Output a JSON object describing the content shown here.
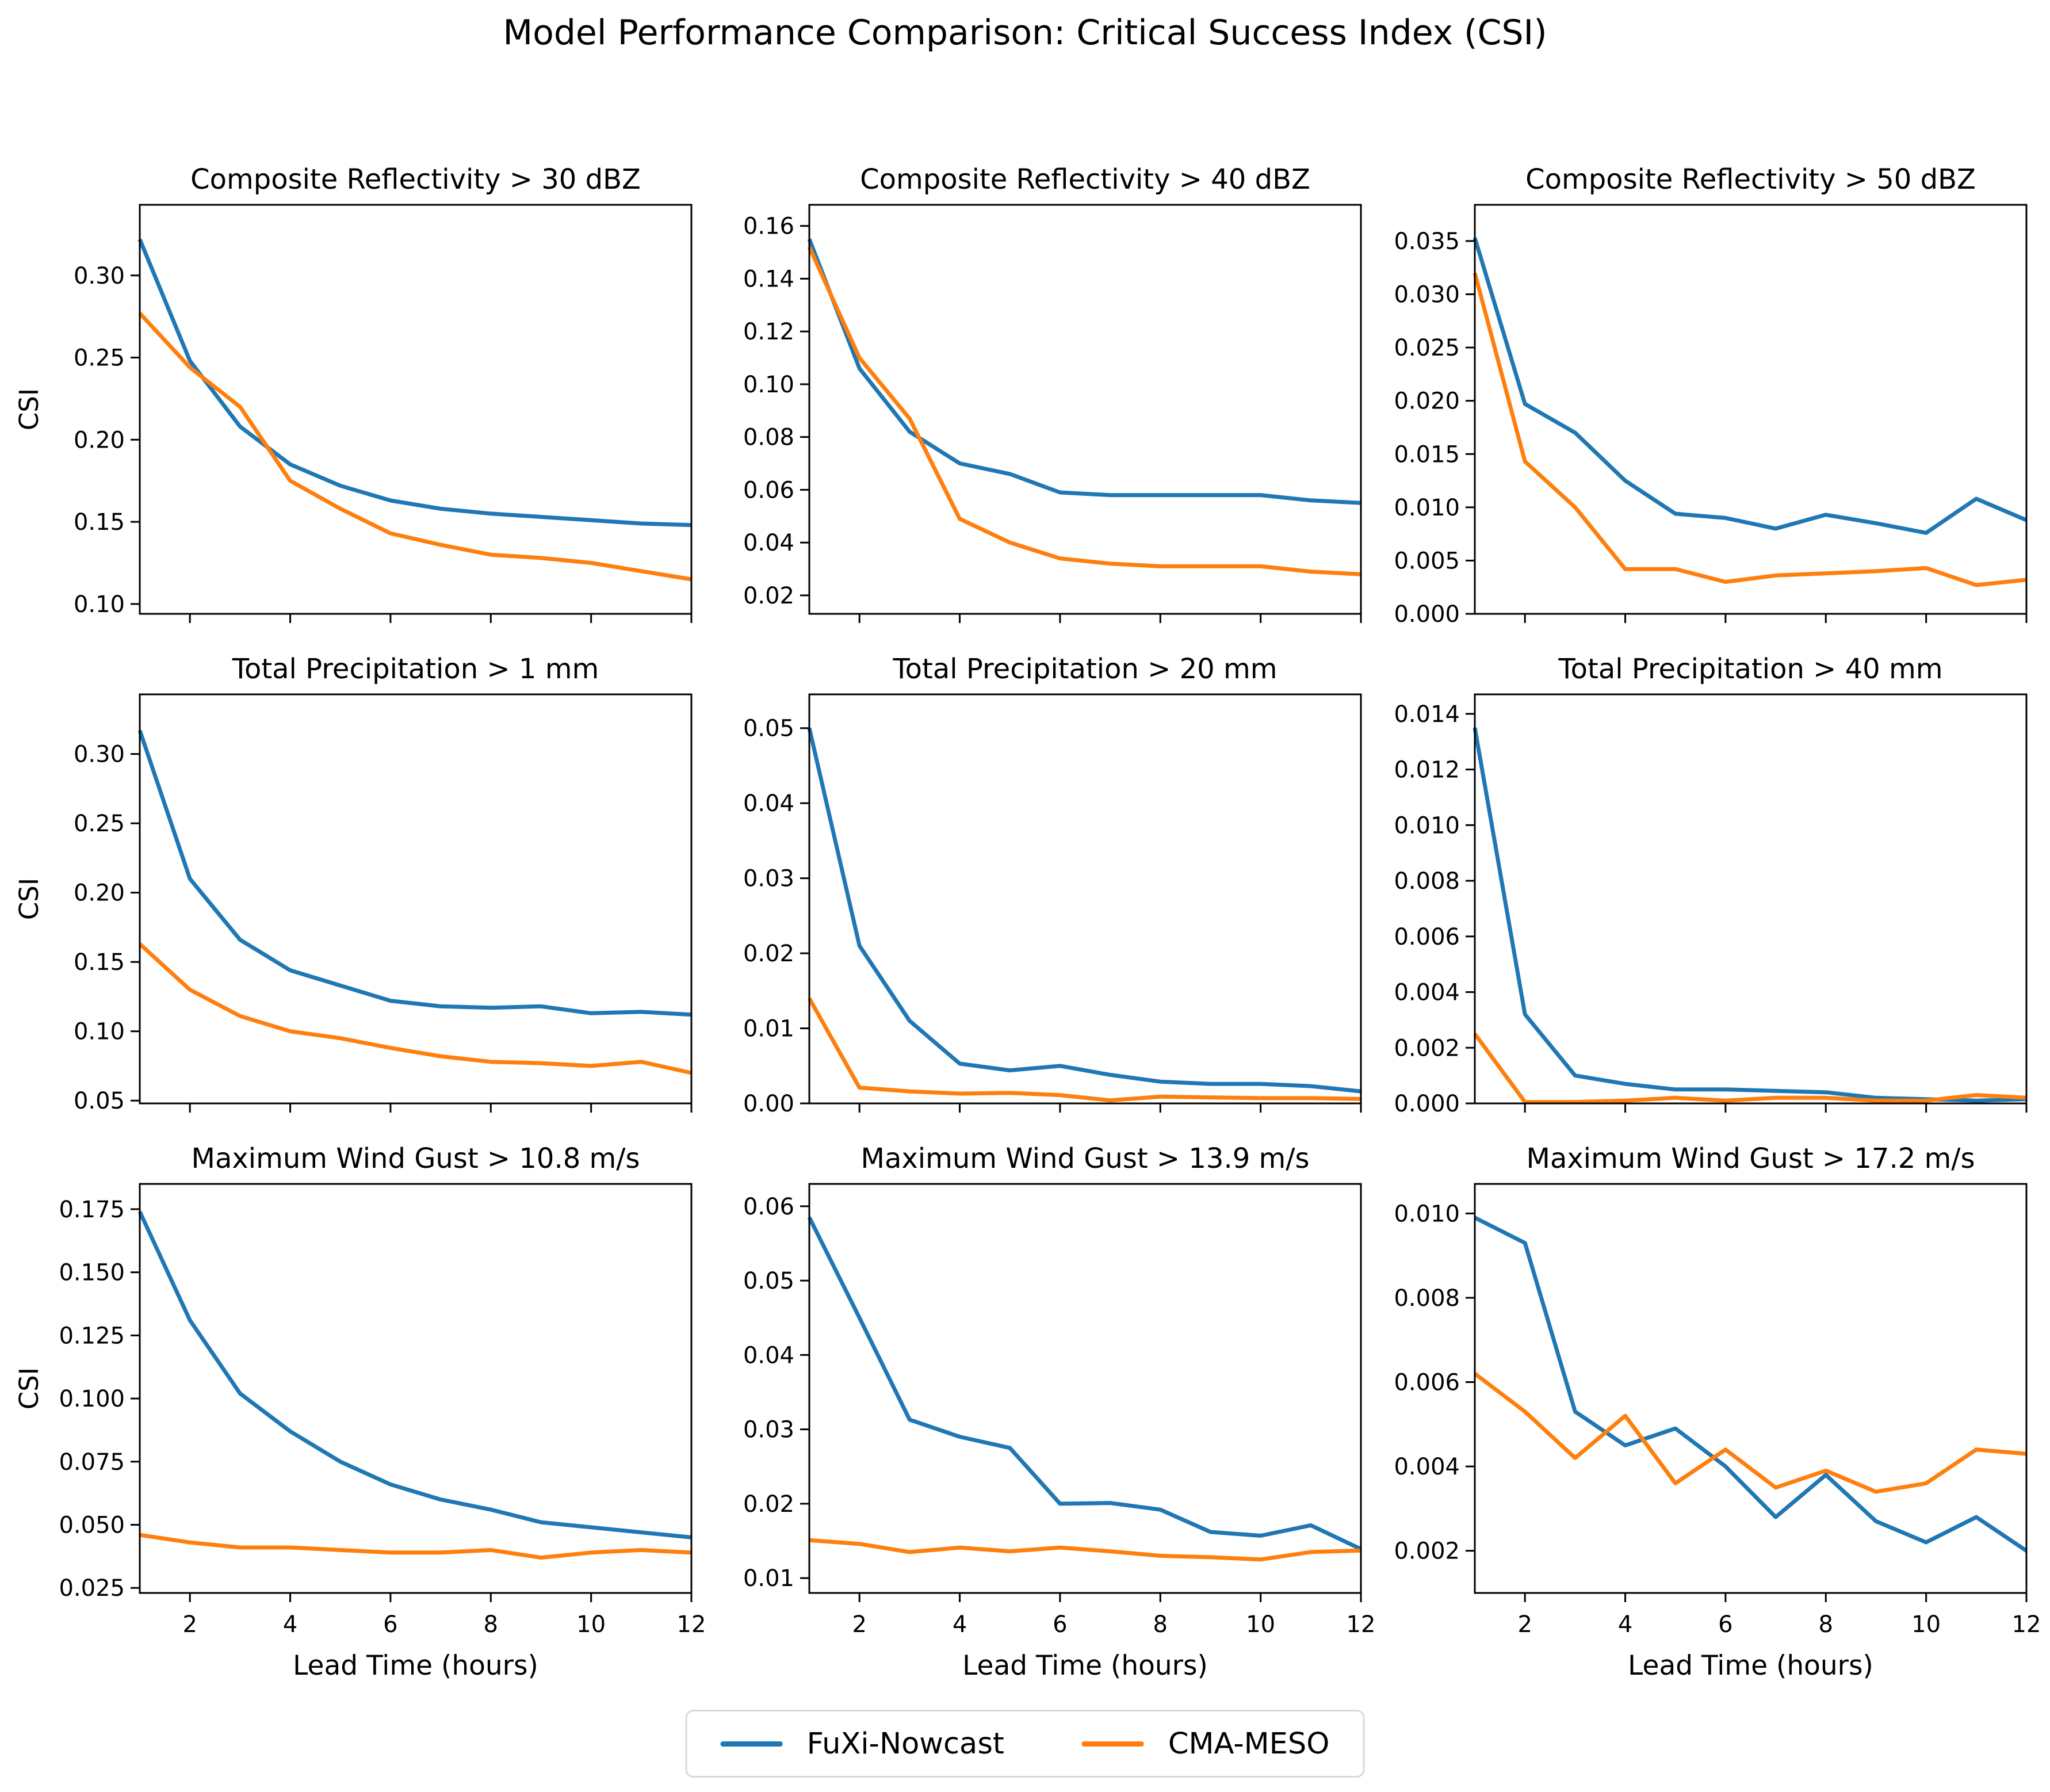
{
  "figure": {
    "title": "Model Performance Comparison: Critical Success Index (CSI)",
    "background": "#ffffff"
  },
  "colors": {
    "fuxi": "#1f77b4",
    "cma": "#ff7f0e",
    "axis": "#000000",
    "legend_border": "#d9d9d9"
  },
  "legend": {
    "items": [
      {
        "label": "FuXi-Nowcast",
        "color": "#1f77b4"
      },
      {
        "label": "CMA-MESO",
        "color": "#ff7f0e"
      }
    ]
  },
  "shared_axes": {
    "xlabel": "Lead Time (hours)",
    "ylabel": "CSI",
    "x": [
      1,
      2,
      3,
      4,
      5,
      6,
      7,
      8,
      9,
      10,
      11,
      12
    ],
    "xticks": [
      2,
      4,
      6,
      8,
      10,
      12
    ],
    "xtick_labels": [
      "2",
      "4",
      "6",
      "8",
      "10",
      "12"
    ],
    "xlim": [
      1,
      12
    ],
    "grid": false,
    "legend_position": "bottom-center"
  },
  "chart_data": [
    {
      "type": "line",
      "title": "Composite Reflectivity > 30 dBZ",
      "row": 0,
      "col": 0,
      "ylim": [
        0.094,
        0.343
      ],
      "yticks": [
        0.1,
        0.15,
        0.2,
        0.25,
        0.3
      ],
      "ytick_labels": [
        "0.10",
        "0.15",
        "0.20",
        "0.25",
        "0.30"
      ],
      "series": [
        {
          "name": "FuXi-Nowcast",
          "color": "#1f77b4",
          "values": [
            0.322,
            0.248,
            0.208,
            0.185,
            0.172,
            0.163,
            0.158,
            0.155,
            0.153,
            0.151,
            0.149,
            0.148
          ]
        },
        {
          "name": "CMA-MESO",
          "color": "#ff7f0e",
          "values": [
            0.277,
            0.244,
            0.22,
            0.175,
            0.158,
            0.143,
            0.136,
            0.13,
            0.128,
            0.125,
            0.12,
            0.115
          ]
        }
      ]
    },
    {
      "type": "line",
      "title": "Composite Reflectivity > 40 dBZ",
      "row": 0,
      "col": 1,
      "ylim": [
        0.013,
        0.168
      ],
      "yticks": [
        0.02,
        0.04,
        0.06,
        0.08,
        0.1,
        0.12,
        0.14,
        0.16
      ],
      "ytick_labels": [
        "0.02",
        "0.04",
        "0.06",
        "0.08",
        "0.10",
        "0.12",
        "0.14",
        "0.16"
      ],
      "series": [
        {
          "name": "FuXi-Nowcast",
          "color": "#1f77b4",
          "values": [
            0.155,
            0.106,
            0.082,
            0.07,
            0.066,
            0.059,
            0.058,
            0.058,
            0.058,
            0.058,
            0.056,
            0.055
          ]
        },
        {
          "name": "CMA-MESO",
          "color": "#ff7f0e",
          "values": [
            0.152,
            0.11,
            0.087,
            0.049,
            0.04,
            0.034,
            0.032,
            0.031,
            0.031,
            0.031,
            0.029,
            0.028
          ]
        }
      ]
    },
    {
      "type": "line",
      "title": "Composite Reflectivity > 50 dBZ",
      "row": 0,
      "col": 2,
      "ylim": [
        0.0,
        0.0384
      ],
      "yticks": [
        0.0,
        0.005,
        0.01,
        0.015,
        0.02,
        0.025,
        0.03,
        0.035
      ],
      "ytick_labels": [
        "0.000",
        "0.005",
        "0.010",
        "0.015",
        "0.020",
        "0.025",
        "0.030",
        "0.035"
      ],
      "series": [
        {
          "name": "FuXi-Nowcast",
          "color": "#1f77b4",
          "values": [
            0.0353,
            0.0197,
            0.017,
            0.0125,
            0.0094,
            0.009,
            0.008,
            0.0093,
            0.0085,
            0.0076,
            0.0108,
            0.0088
          ]
        },
        {
          "name": "CMA-MESO",
          "color": "#ff7f0e",
          "values": [
            0.032,
            0.0143,
            0.01,
            0.0042,
            0.0042,
            0.003,
            0.0036,
            0.0038,
            0.004,
            0.0043,
            0.0027,
            0.0032
          ]
        }
      ]
    },
    {
      "type": "line",
      "title": "Total Precipitation > 1 mm",
      "row": 1,
      "col": 0,
      "ylim": [
        0.048,
        0.343
      ],
      "yticks": [
        0.05,
        0.1,
        0.15,
        0.2,
        0.25,
        0.3
      ],
      "ytick_labels": [
        "0.05",
        "0.10",
        "0.15",
        "0.20",
        "0.25",
        "0.30"
      ],
      "series": [
        {
          "name": "FuXi-Nowcast",
          "color": "#1f77b4",
          "values": [
            0.317,
            0.21,
            0.166,
            0.144,
            0.133,
            0.122,
            0.118,
            0.117,
            0.118,
            0.113,
            0.114,
            0.112
          ]
        },
        {
          "name": "CMA-MESO",
          "color": "#ff7f0e",
          "values": [
            0.163,
            0.13,
            0.111,
            0.1,
            0.095,
            0.088,
            0.082,
            0.078,
            0.077,
            0.075,
            0.078,
            0.07
          ]
        }
      ]
    },
    {
      "type": "line",
      "title": "Total Precipitation > 20 mm",
      "row": 1,
      "col": 1,
      "ylim": [
        0.0,
        0.0545
      ],
      "yticks": [
        0.0,
        0.01,
        0.02,
        0.03,
        0.04,
        0.05
      ],
      "ytick_labels": [
        "0.00",
        "0.01",
        "0.02",
        "0.03",
        "0.04",
        "0.05"
      ],
      "series": [
        {
          "name": "FuXi-Nowcast",
          "color": "#1f77b4",
          "values": [
            0.05,
            0.021,
            0.011,
            0.0053,
            0.0044,
            0.005,
            0.0038,
            0.0029,
            0.0026,
            0.0026,
            0.0023,
            0.0016
          ]
        },
        {
          "name": "CMA-MESO",
          "color": "#ff7f0e",
          "values": [
            0.014,
            0.0021,
            0.0016,
            0.0013,
            0.0014,
            0.0011,
            0.0004,
            0.0009,
            0.0008,
            0.0007,
            0.0007,
            0.0006
          ]
        }
      ]
    },
    {
      "type": "line",
      "title": "Total Precipitation > 40 mm",
      "row": 1,
      "col": 2,
      "ylim": [
        0.0,
        0.0147
      ],
      "yticks": [
        0.0,
        0.002,
        0.004,
        0.006,
        0.008,
        0.01,
        0.012,
        0.014
      ],
      "ytick_labels": [
        "0.000",
        "0.002",
        "0.004",
        "0.006",
        "0.008",
        "0.010",
        "0.012",
        "0.014"
      ],
      "series": [
        {
          "name": "FuXi-Nowcast",
          "color": "#1f77b4",
          "values": [
            0.0135,
            0.0032,
            0.001,
            0.0007,
            0.0005,
            0.0005,
            0.00045,
            0.0004,
            0.0002,
            0.00015,
            0.0001,
            0.00015
          ]
        },
        {
          "name": "CMA-MESO",
          "color": "#ff7f0e",
          "values": [
            0.0025,
            5e-05,
            5e-05,
            0.0001,
            0.0002,
            0.0001,
            0.0002,
            0.0002,
            0.0001,
            0.0001,
            0.0003,
            0.0002
          ]
        }
      ]
    },
    {
      "type": "line",
      "title": "Maximum Wind Gust > 10.8 m/s",
      "row": 2,
      "col": 0,
      "ylim": [
        0.023,
        0.185
      ],
      "yticks": [
        0.025,
        0.05,
        0.075,
        0.1,
        0.125,
        0.15,
        0.175
      ],
      "ytick_labels": [
        "0.025",
        "0.050",
        "0.075",
        "0.100",
        "0.125",
        "0.150",
        "0.175"
      ],
      "series": [
        {
          "name": "FuXi-Nowcast",
          "color": "#1f77b4",
          "values": [
            0.174,
            0.131,
            0.102,
            0.087,
            0.075,
            0.066,
            0.06,
            0.056,
            0.051,
            0.049,
            0.047,
            0.045
          ]
        },
        {
          "name": "CMA-MESO",
          "color": "#ff7f0e",
          "values": [
            0.046,
            0.043,
            0.041,
            0.041,
            0.04,
            0.039,
            0.039,
            0.04,
            0.037,
            0.039,
            0.04,
            0.039
          ]
        }
      ]
    },
    {
      "type": "line",
      "title": "Maximum Wind Gust > 13.9 m/s",
      "row": 2,
      "col": 1,
      "ylim": [
        0.008,
        0.063
      ],
      "yticks": [
        0.01,
        0.02,
        0.03,
        0.04,
        0.05,
        0.06
      ],
      "ytick_labels": [
        "0.01",
        "0.02",
        "0.03",
        "0.04",
        "0.05",
        "0.06"
      ],
      "series": [
        {
          "name": "FuXi-Nowcast",
          "color": "#1f77b4",
          "values": [
            0.0585,
            0.045,
            0.0313,
            0.029,
            0.0275,
            0.02,
            0.0201,
            0.0192,
            0.0162,
            0.0157,
            0.0171,
            0.0139
          ]
        },
        {
          "name": "CMA-MESO",
          "color": "#ff7f0e",
          "values": [
            0.0151,
            0.0146,
            0.0135,
            0.0141,
            0.0136,
            0.0141,
            0.0136,
            0.013,
            0.0128,
            0.0125,
            0.0135,
            0.0137
          ]
        }
      ]
    },
    {
      "type": "line",
      "title": "Maximum Wind Gust > 17.2 m/s",
      "row": 2,
      "col": 2,
      "ylim": [
        0.001,
        0.0107
      ],
      "yticks": [
        0.002,
        0.004,
        0.006,
        0.008,
        0.01
      ],
      "ytick_labels": [
        "0.002",
        "0.004",
        "0.006",
        "0.008",
        "0.010"
      ],
      "series": [
        {
          "name": "FuXi-Nowcast",
          "color": "#1f77b4",
          "values": [
            0.0099,
            0.0093,
            0.0053,
            0.0045,
            0.0049,
            0.004,
            0.0028,
            0.0038,
            0.0027,
            0.0022,
            0.0028,
            0.002
          ]
        },
        {
          "name": "CMA-MESO",
          "color": "#ff7f0e",
          "values": [
            0.0062,
            0.0053,
            0.0042,
            0.0052,
            0.0036,
            0.0044,
            0.0035,
            0.0039,
            0.0034,
            0.0036,
            0.0044,
            0.0043
          ]
        }
      ]
    }
  ]
}
